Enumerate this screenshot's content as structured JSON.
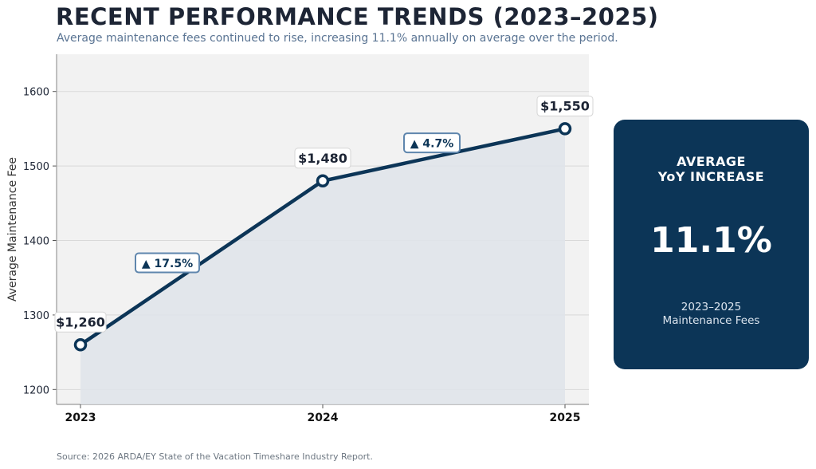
{
  "header": {
    "title": "RECENT PERFORMANCE TRENDS (2023–2025)",
    "subtitle": "Average maintenance fees continued to rise, increasing 11.1% annually on average over the period."
  },
  "chart_data": {
    "type": "line",
    "x": [
      "2023",
      "2024",
      "2025"
    ],
    "series": [
      {
        "values": [
          1260,
          1480,
          1550
        ]
      }
    ],
    "point_labels": [
      "$1,260",
      "$1,480",
      "$1,550"
    ],
    "annotations": [
      {
        "between": [
          "2023",
          "2024"
        ],
        "text": "▲ 17.5%"
      },
      {
        "between": [
          "2024",
          "2025"
        ],
        "text": "▲ 4.7%"
      }
    ],
    "xlabel": "",
    "ylabel": "Average Maintenance Fee",
    "yticks": [
      1200,
      1300,
      1400,
      1500,
      1600
    ],
    "ylim": [
      1180,
      1650
    ],
    "grid": true,
    "area_fill": true,
    "colors": {
      "line": "#0c3557",
      "area": "#dfe4ea",
      "plot_bg": "#f2f2f2",
      "annotation_border": "#5f86ad"
    }
  },
  "kpi": {
    "heading_line1": "AVERAGE",
    "heading_line2": "YoY INCREASE",
    "value": "11.1%",
    "caption_line1": "2023–2025",
    "caption_line2": "Maintenance Fees",
    "background": "#0c3557"
  },
  "footer": {
    "source": "Source: 2026 ARDA/EY State of the Vacation Timeshare Industry Report."
  }
}
